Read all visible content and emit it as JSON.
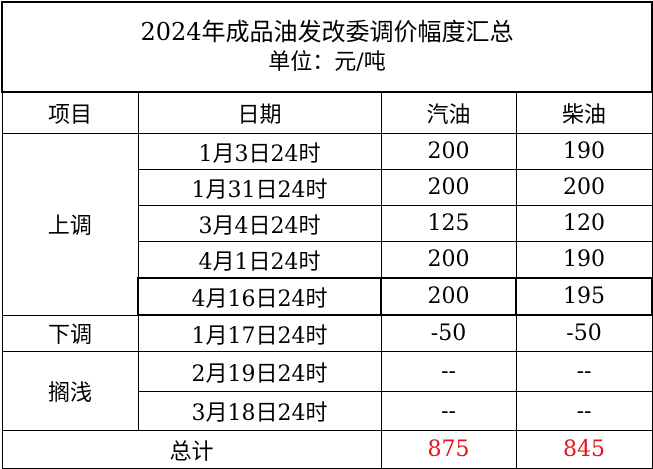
{
  "title": "2024年成品油发改委调价幅度汇总",
  "unit": "单位：元/吨",
  "headers": [
    "项目",
    "日期",
    "汽油",
    "柴油"
  ],
  "colors": {
    "increase": "#e8141b",
    "decrease": "#13a04a",
    "neutral": "#000000"
  },
  "groups": {
    "up": {
      "label": "上调",
      "rows": [
        {
          "date": "1月3日24时",
          "gasoline": "200",
          "diesel": "190"
        },
        {
          "date": "1月31日24时",
          "gasoline": "200",
          "diesel": "200"
        },
        {
          "date": "3月4日24时",
          "gasoline": "125",
          "diesel": "120"
        },
        {
          "date": "4月1日24时",
          "gasoline": "200",
          "diesel": "190"
        },
        {
          "date": "4月16日24时",
          "gasoline": "200",
          "diesel": "195"
        }
      ]
    },
    "down": {
      "label": "下调",
      "rows": [
        {
          "date": "1月17日24时",
          "gasoline": "-50",
          "diesel": "-50"
        }
      ]
    },
    "shelved": {
      "label": "搁浅",
      "rows": [
        {
          "date": "2月19日24时",
          "gasoline": "--",
          "diesel": "--"
        },
        {
          "date": "3月18日24时",
          "gasoline": "--",
          "diesel": "--"
        }
      ]
    }
  },
  "total": {
    "label": "总计",
    "gasoline": "875",
    "diesel": "845"
  }
}
